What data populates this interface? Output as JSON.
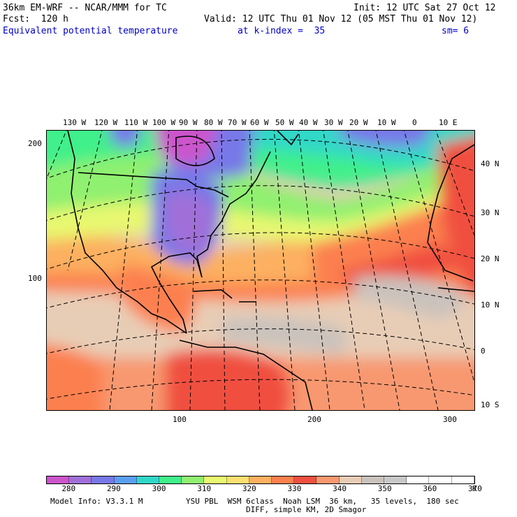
{
  "header": {
    "line1_left": "36km EM-WRF -- NCAR/MMM for TC",
    "line1_right": "Init: 12 UTC Sat 27 Oct 12",
    "line2_left": "Fcst:  120 h",
    "line2_right": "Valid: 12 UTC Thu 01 Nov 12 (05 MST Thu 01 Nov 12)",
    "field_name": "Equivalent potential temperature",
    "level": "at k-index =  35",
    "smoothing": "sm= 6"
  },
  "map": {
    "lon_labels": [
      "130 W",
      "120 W",
      "110 W",
      "100 W",
      "90 W",
      "80 W",
      "70 W",
      "60 W",
      "50 W",
      "40 W",
      "30 W",
      "20 W",
      "10 W",
      "0",
      "10 E"
    ],
    "lat_labels": [
      "40 N",
      "30 N",
      "20 N",
      "10 N",
      "0",
      "10 S"
    ],
    "grid_y_labels": [
      "200",
      "100"
    ],
    "grid_x_labels": [
      "100",
      "200",
      "300"
    ]
  },
  "colorbar": {
    "colors": [
      "#cc55cc",
      "#a070d8",
      "#7878e8",
      "#5aa0f0",
      "#30d8c8",
      "#40f08a",
      "#90f070",
      "#e8f870",
      "#fce070",
      "#fcb060",
      "#fc8050",
      "#f05040",
      "#f89870",
      "#e8cdb6",
      "#cac2bc",
      "#c8c8c8",
      "#ffffff",
      "#ffffff",
      "#ffffff"
    ],
    "labels": [
      "280",
      "290",
      "300",
      "310",
      "320",
      "330",
      "340",
      "350",
      "360",
      "370"
    ],
    "unit": "K"
  },
  "footer": {
    "line1_left": "Model Info: V3.3.1 M",
    "line1_right": "YSU PBL  WSM 6class  Noah LSM  36 km,   35 levels,  180 sec",
    "line2": "DIFF, simple KM, 2D Smagor"
  }
}
